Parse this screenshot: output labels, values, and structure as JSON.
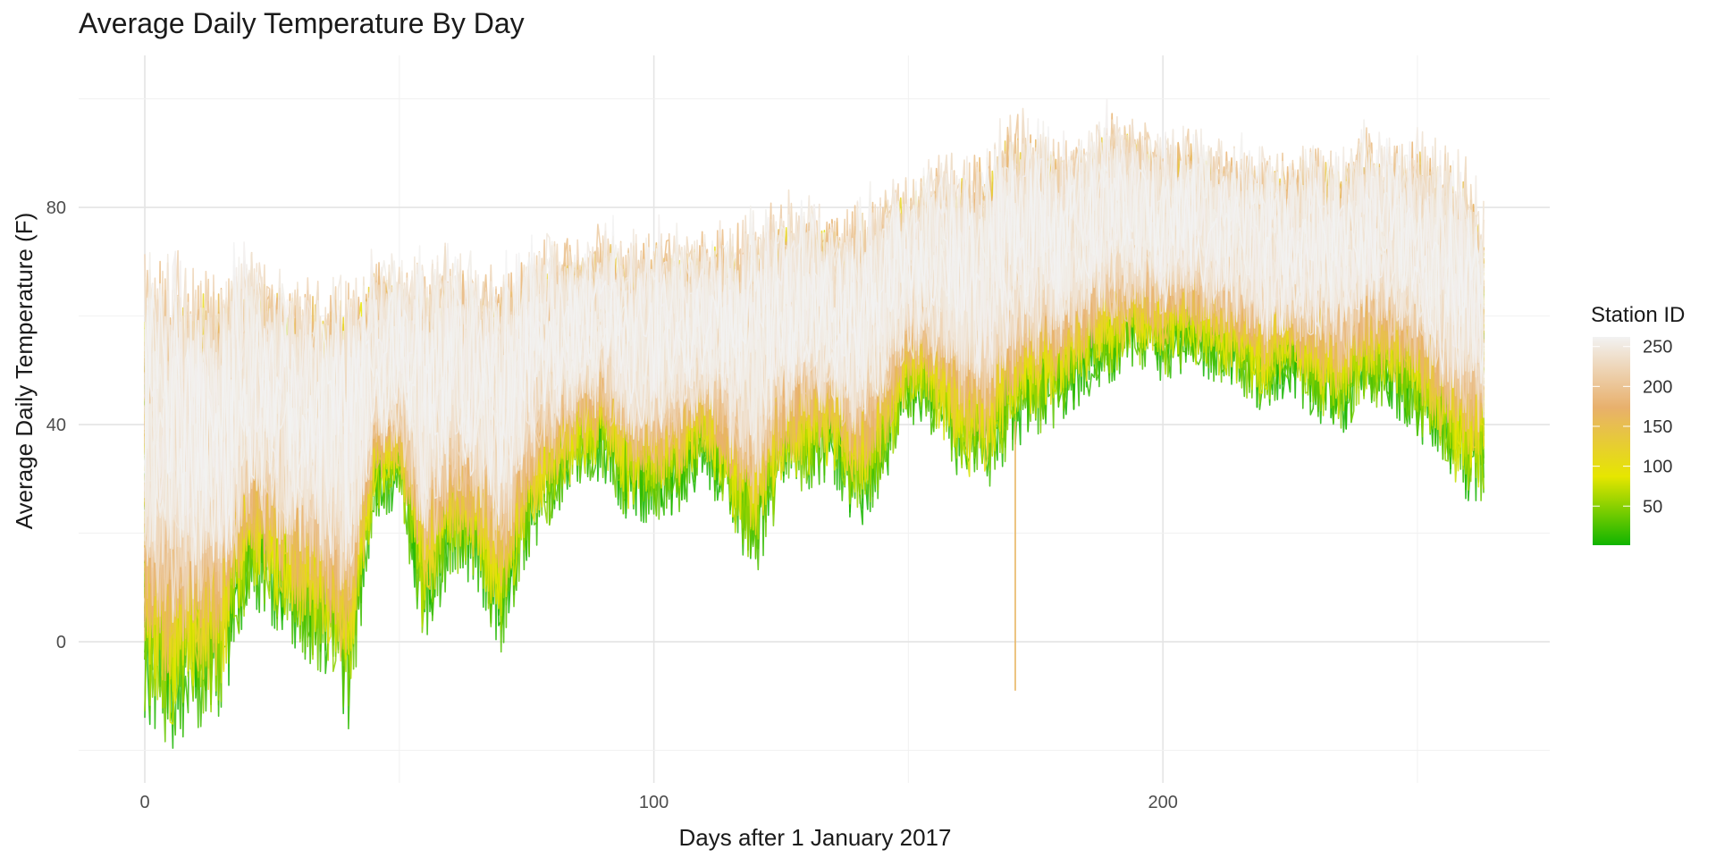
{
  "chart_data": {
    "type": "line",
    "title": "Average Daily Temperature By Day",
    "xlabel": "Days after 1 January 2017",
    "ylabel": "Average Daily Temperature (F)",
    "xlim": [
      -13,
      276
    ],
    "ylim": [
      -26,
      108
    ],
    "x_ticks": [
      0,
      100,
      200
    ],
    "y_ticks": [
      0,
      40,
      80
    ],
    "grid": true,
    "legend": {
      "title": "Station ID",
      "position": "right",
      "type": "continuous",
      "range": [
        1,
        262
      ],
      "ticks": [
        50,
        100,
        150,
        200,
        250
      ],
      "colors": [
        "#10b400",
        "#e6e600",
        "#e8b06c",
        "#f2f2f2"
      ]
    },
    "envelope": {
      "x": [
        0,
        5,
        10,
        15,
        20,
        25,
        30,
        35,
        40,
        45,
        50,
        55,
        60,
        65,
        70,
        75,
        80,
        85,
        90,
        95,
        100,
        105,
        110,
        115,
        120,
        125,
        130,
        135,
        140,
        145,
        150,
        155,
        160,
        165,
        170,
        175,
        180,
        185,
        190,
        195,
        200,
        205,
        210,
        215,
        220,
        225,
        230,
        235,
        240,
        245,
        250,
        255,
        260,
        263
      ],
      "upper": [
        80,
        78,
        76,
        76,
        78,
        74,
        73,
        72,
        73,
        74,
        73,
        76,
        77,
        75,
        74,
        77,
        78,
        78,
        80,
        79,
        80,
        79,
        80,
        81,
        84,
        85,
        86,
        84,
        85,
        88,
        90,
        93,
        94,
        96,
        102,
        100,
        96,
        97,
        102,
        100,
        97,
        98,
        96,
        95,
        94,
        93,
        97,
        95,
        98,
        96,
        97,
        96,
        92,
        85
      ],
      "lower": [
        -14,
        -20,
        -16,
        -14,
        5,
        3,
        -2,
        -6,
        -16,
        22,
        25,
        -2,
        12,
        10,
        -2,
        15,
        22,
        28,
        30,
        22,
        22,
        24,
        30,
        20,
        12,
        25,
        28,
        30,
        20,
        28,
        40,
        38,
        30,
        26,
        35,
        38,
        40,
        45,
        48,
        50,
        48,
        50,
        48,
        46,
        42,
        46,
        40,
        38,
        44,
        42,
        38,
        30,
        26,
        26
      ]
    },
    "outliers": [
      {
        "x": 171,
        "y": -9,
        "station": 165
      }
    ]
  }
}
